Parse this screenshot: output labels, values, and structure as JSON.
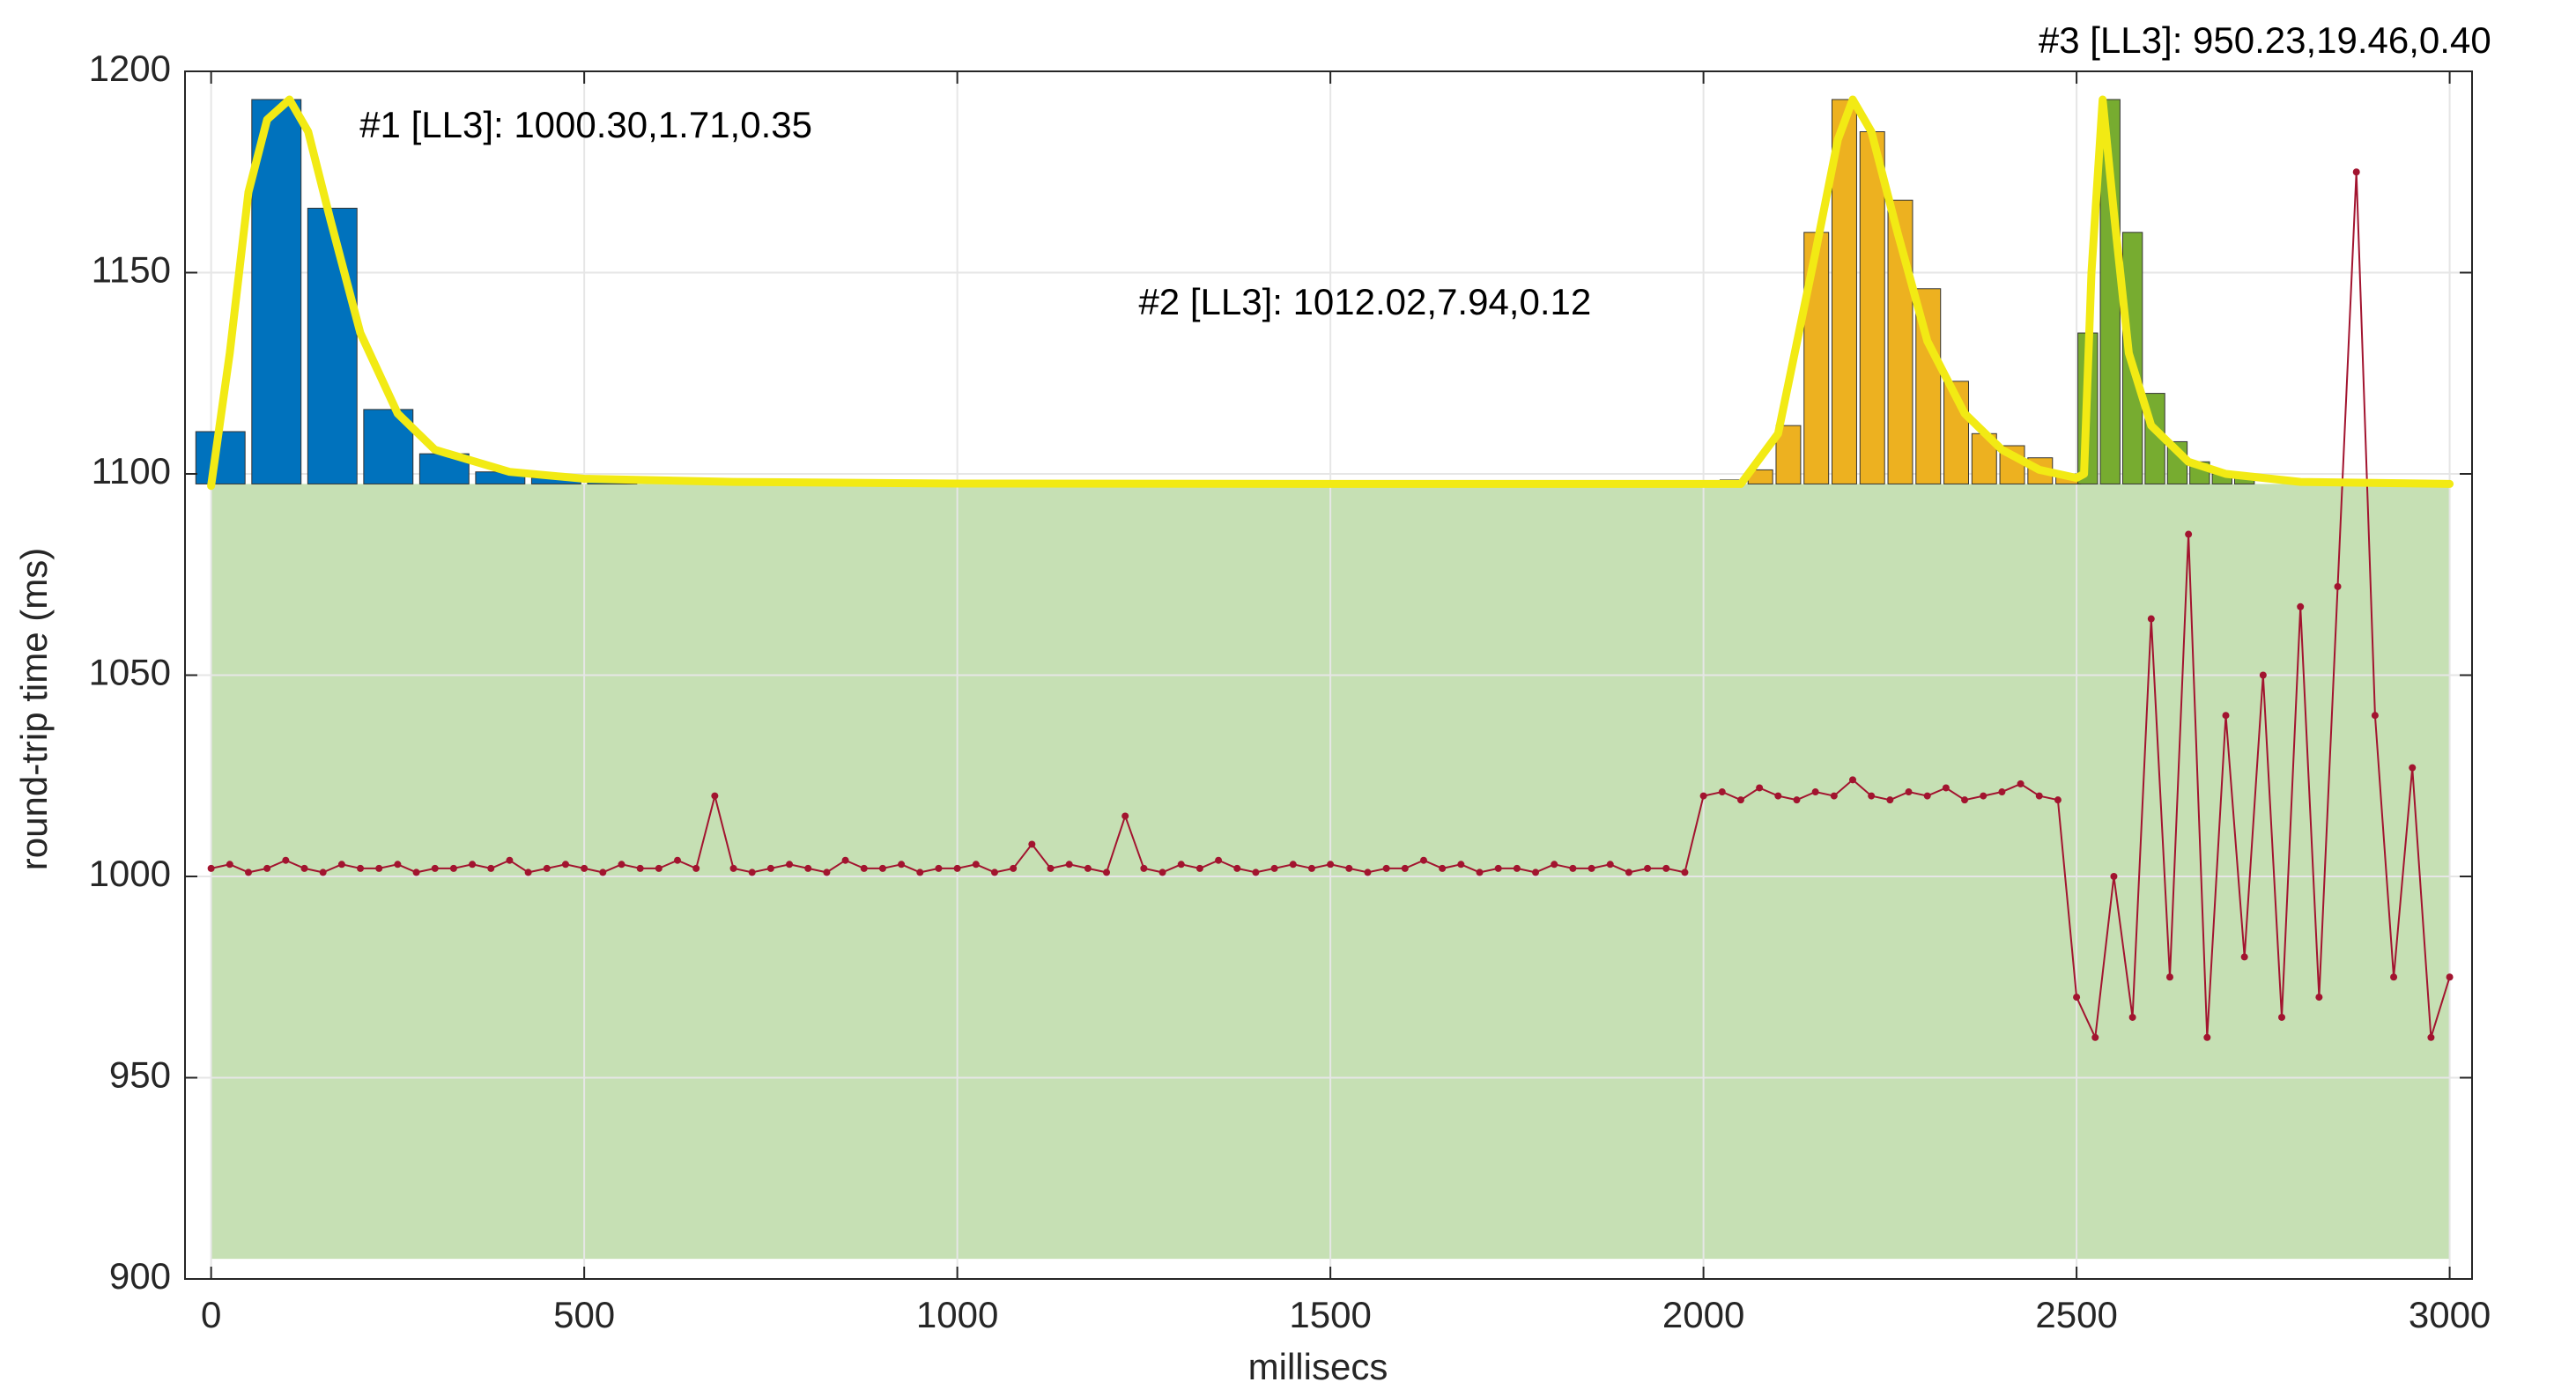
{
  "chart_data": {
    "type": "line",
    "xlabel": "millisecs",
    "ylabel": "round-trip time (ms)",
    "xlim": [
      -35,
      3030
    ],
    "ylim": [
      900,
      1200
    ],
    "xticks": [
      0,
      500,
      1000,
      1500,
      2000,
      2500,
      3000
    ],
    "yticks": [
      900,
      950,
      1000,
      1050,
      1100,
      1150,
      1200
    ],
    "grid": true,
    "shaded_region": {
      "x": [
        0,
        3000
      ],
      "y": [
        905,
        1097.5
      ],
      "color": "#c6e0b4"
    },
    "hist_base": 1097.5,
    "histograms": [
      {
        "color": "#0072bd",
        "bins": [
          -25,
          50,
          125,
          200,
          275,
          350,
          425,
          500,
          575
        ],
        "values": [
          1110.5,
          1193,
          1166,
          1116,
          1105,
          1100.5,
          1099,
          1098.3
        ]
      },
      {
        "color": "#edb120",
        "bins": [
          2020,
          2057.5,
          2095,
          2132.5,
          2170,
          2207.5,
          2245,
          2282.5,
          2320,
          2357.5,
          2395,
          2432.5,
          2470,
          2507.5
        ],
        "values": [
          1098.5,
          1101,
          1112,
          1160,
          1193,
          1185,
          1168,
          1146,
          1123,
          1110,
          1107,
          1104,
          1100
        ]
      },
      {
        "color": "#77ac30",
        "bins": [
          2500,
          2530,
          2560,
          2590,
          2620,
          2650,
          2680,
          2710,
          2740
        ],
        "values": [
          1135,
          1193,
          1160,
          1120,
          1108,
          1103,
          1100,
          1099
        ]
      }
    ],
    "fit_curve": {
      "color": "#f2ea14",
      "x": [
        0,
        25,
        50,
        75,
        105,
        130,
        160,
        200,
        250,
        300,
        400,
        500,
        700,
        1000,
        1500,
        2050,
        2100,
        2150,
        2180,
        2200,
        2225,
        2260,
        2300,
        2350,
        2400,
        2450,
        2500,
        2510,
        2520,
        2535,
        2550,
        2570,
        2600,
        2650,
        2700,
        2800,
        3000
      ],
      "y": [
        1097,
        1130,
        1170,
        1188,
        1193,
        1185,
        1163,
        1135,
        1115,
        1106,
        1100.5,
        1098.8,
        1098,
        1097.6,
        1097.5,
        1097.5,
        1110,
        1155,
        1183,
        1193,
        1185,
        1160,
        1133,
        1115,
        1106,
        1101,
        1099,
        1100,
        1150,
        1193,
        1165,
        1130,
        1112,
        1103,
        1100,
        1098,
        1097.5
      ]
    },
    "annotations": [
      {
        "text": "#1 [LL3]: 1000.30,1.71,0.35",
        "x": 199,
        "y": 1186
      },
      {
        "text": "#2 [LL3]: 1012.02,7.94,0.12",
        "x": 1243,
        "y": 1142
      },
      {
        "text": "#3 [LL3]: 950.23,19.46,0.40",
        "x": 2449,
        "y": 1207
      }
    ],
    "series": [
      {
        "color": "#a2142f",
        "x": [
          0,
          25,
          50,
          75,
          100,
          125,
          150,
          175,
          200,
          225,
          250,
          275,
          300,
          325,
          350,
          375,
          400,
          425,
          450,
          475,
          500,
          525,
          550,
          575,
          600,
          625,
          650,
          675,
          700,
          725,
          750,
          775,
          800,
          825,
          850,
          875,
          900,
          925,
          950,
          975,
          1000,
          1025,
          1050,
          1075,
          1100,
          1125,
          1150,
          1175,
          1200,
          1225,
          1250,
          1275,
          1300,
          1325,
          1350,
          1375,
          1400,
          1425,
          1450,
          1475,
          1500,
          1525,
          1550,
          1575,
          1600,
          1625,
          1650,
          1675,
          1700,
          1725,
          1750,
          1775,
          1800,
          1825,
          1850,
          1875,
          1900,
          1925,
          1950,
          1975,
          2000,
          2025,
          2050,
          2075,
          2100,
          2125,
          2150,
          2175,
          2200,
          2225,
          2250,
          2275,
          2300,
          2325,
          2350,
          2375,
          2400,
          2425,
          2450,
          2475,
          2500,
          2525,
          2550,
          2575,
          2600,
          2625,
          2650,
          2675,
          2700,
          2725,
          2750,
          2775,
          2800,
          2825,
          2850,
          2875,
          2900,
          2925,
          2950,
          2975,
          3000
        ],
        "values": [
          1002,
          1003,
          1001,
          1002,
          1004,
          1002,
          1001,
          1003,
          1002,
          1002,
          1003,
          1001,
          1002,
          1002,
          1003,
          1002,
          1004,
          1001,
          1002,
          1003,
          1002,
          1001,
          1003,
          1002,
          1002,
          1004,
          1002,
          1020,
          1002,
          1001,
          1002,
          1003,
          1002,
          1001,
          1004,
          1002,
          1002,
          1003,
          1001,
          1002,
          1002,
          1003,
          1001,
          1002,
          1008,
          1002,
          1003,
          1002,
          1001,
          1015,
          1002,
          1001,
          1003,
          1002,
          1004,
          1002,
          1001,
          1002,
          1003,
          1002,
          1003,
          1002,
          1001,
          1002,
          1002,
          1004,
          1002,
          1003,
          1001,
          1002,
          1002,
          1001,
          1003,
          1002,
          1002,
          1003,
          1001,
          1002,
          1002,
          1001,
          1020,
          1021,
          1019,
          1022,
          1020,
          1019,
          1021,
          1020,
          1024,
          1020,
          1019,
          1021,
          1020,
          1022,
          1019,
          1020,
          1021,
          1023,
          1020,
          1019,
          970,
          960,
          1000,
          965,
          1064,
          975,
          1085,
          960,
          1040,
          980,
          1050,
          965,
          1067,
          970,
          1072,
          1175,
          1040,
          975,
          1027,
          960,
          975
        ]
      }
    ]
  }
}
